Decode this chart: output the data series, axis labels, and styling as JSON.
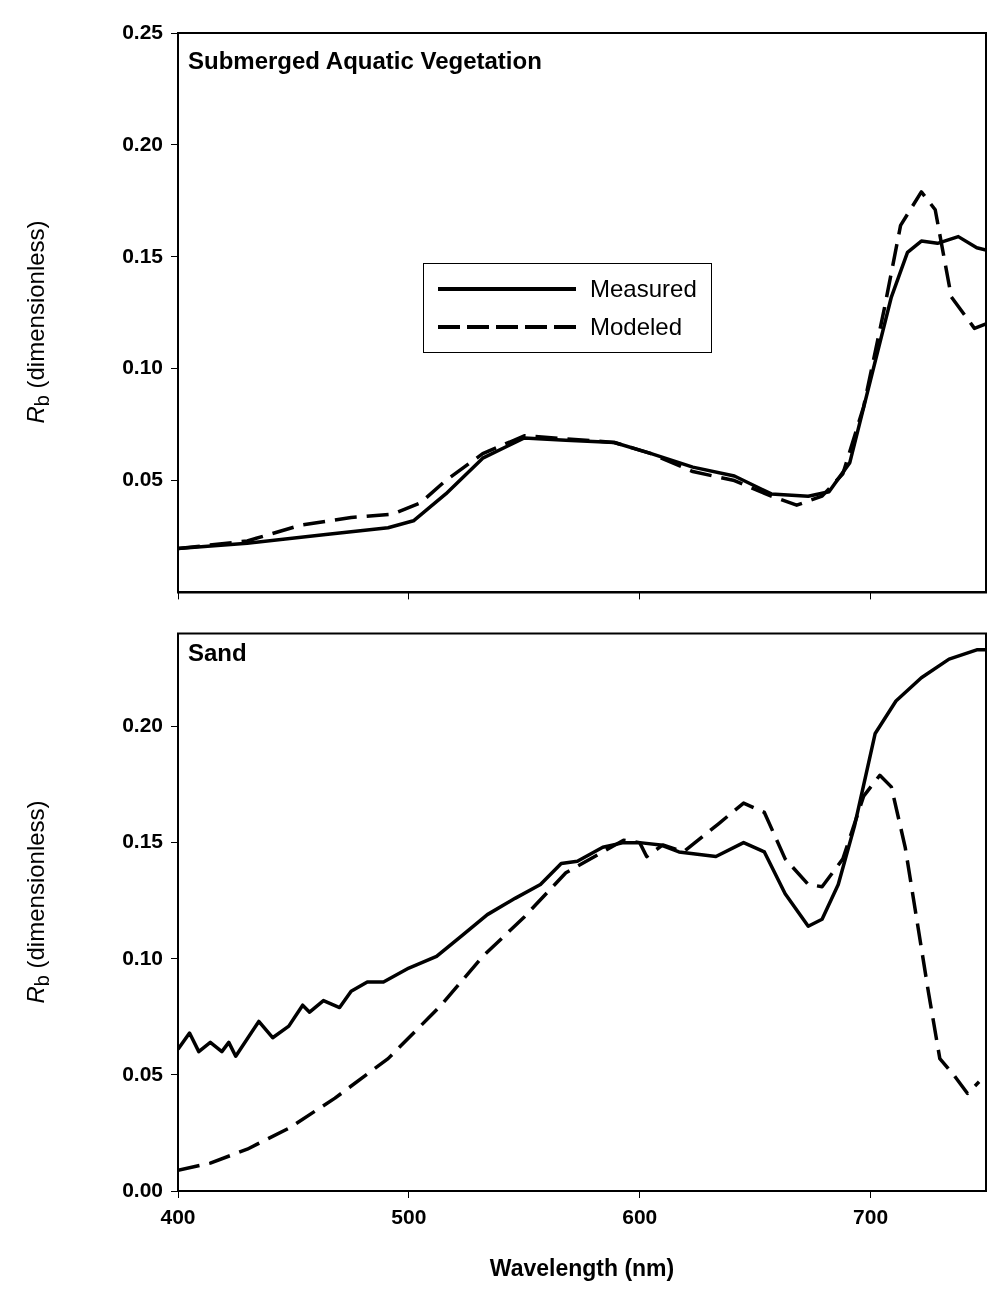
{
  "chart_data": [
    {
      "type": "line",
      "annotations": [
        "Submerged Aquatic Vegetation"
      ],
      "ylabel": "R$_{b}$ (dimensionless)",
      "xlim": [
        400,
        750
      ],
      "xticks": [
        400,
        500,
        600,
        700
      ],
      "ylim": [
        0,
        0.25
      ],
      "yticks": [
        {
          "value": 0.05,
          "label": "0.05"
        },
        {
          "value": 0.1,
          "label": "0.10"
        },
        {
          "value": 0.15,
          "label": "0.15"
        },
        {
          "value": 0.2,
          "label": "0.20"
        },
        {
          "value": 0.25,
          "label": "0.25"
        }
      ],
      "tick_labels": "y",
      "grid": false,
      "legend": "center",
      "marker": "none",
      "series": [
        {
          "name": "Measured",
          "color": "#000000",
          "line_style": "solid",
          "x": [
            400,
            430,
            464,
            491,
            502,
            516,
            532,
            550,
            568,
            589,
            605,
            623,
            641,
            657,
            673,
            682,
            691,
            700,
            709,
            716,
            722,
            729,
            738,
            746,
            750
          ],
          "values": [
            0.0196,
            0.022,
            0.0259,
            0.0289,
            0.032,
            0.044,
            0.06,
            0.069,
            0.068,
            0.067,
            0.062,
            0.056,
            0.052,
            0.044,
            0.043,
            0.045,
            0.058,
            0.095,
            0.132,
            0.152,
            0.157,
            0.156,
            0.159,
            0.154,
            0.153
          ]
        },
        {
          "name": "Modeled",
          "color": "#000000",
          "line_style": "dashed",
          "x": [
            400,
            430,
            453,
            475,
            493,
            505,
            516,
            532,
            550,
            589,
            605,
            623,
            641,
            657,
            668,
            679,
            688,
            697,
            706,
            713,
            722,
            728,
            735,
            745,
            750
          ],
          "values": [
            0.0196,
            0.023,
            0.03,
            0.0335,
            0.035,
            0.04,
            0.05,
            0.062,
            0.07,
            0.067,
            0.062,
            0.054,
            0.05,
            0.043,
            0.039,
            0.043,
            0.053,
            0.083,
            0.127,
            0.164,
            0.179,
            0.171,
            0.132,
            0.118,
            0.12
          ]
        }
      ]
    },
    {
      "type": "line",
      "annotations": [
        "Sand"
      ],
      "xlabel": "Wavelength (nm)",
      "ylabel": "R$_{b}$ (dimensionless)",
      "xlim": [
        400,
        750
      ],
      "xticks": [
        400,
        500,
        600,
        700
      ],
      "ylim": [
        0,
        0.24
      ],
      "yticks": [
        {
          "value": 0,
          "label": "0.00"
        },
        {
          "value": 0.05,
          "label": "0.05"
        },
        {
          "value": 0.1,
          "label": "0.10"
        },
        {
          "value": 0.15,
          "label": "0.15"
        },
        {
          "value": 0.2,
          "label": "0.20"
        }
      ],
      "grid": false,
      "marker": "none",
      "series": [
        {
          "color": "#000000",
          "line_style": "solid",
          "x": [
            400,
            405,
            409,
            414,
            419,
            422,
            425,
            435,
            441,
            448,
            454,
            457,
            463,
            470,
            475,
            482,
            489,
            500,
            512,
            523,
            534,
            546,
            557,
            566,
            573,
            584,
            593,
            600,
            609,
            617,
            633,
            645,
            654,
            663,
            673,
            679,
            686,
            693,
            702,
            711,
            722,
            734,
            746,
            750
          ],
          "values": [
            0.061,
            0.068,
            0.06,
            0.064,
            0.06,
            0.064,
            0.058,
            0.073,
            0.066,
            0.071,
            0.08,
            0.077,
            0.082,
            0.079,
            0.086,
            0.09,
            0.09,
            0.096,
            0.101,
            0.11,
            0.119,
            0.126,
            0.132,
            0.141,
            0.142,
            0.148,
            0.15,
            0.15,
            0.149,
            0.146,
            0.144,
            0.15,
            0.146,
            0.128,
            0.114,
            0.117,
            0.132,
            0.157,
            0.197,
            0.211,
            0.221,
            0.229,
            0.233,
            0.233
          ]
        },
        {
          "color": "#000000",
          "line_style": "dashed",
          "x": [
            400,
            414,
            430,
            448,
            468,
            491,
            514,
            532,
            550,
            568,
            584,
            593,
            600,
            603,
            610,
            619,
            634,
            645,
            654,
            663,
            673,
            679,
            688,
            697,
            704,
            709,
            715,
            720,
            725,
            730,
            736,
            742,
            747
          ],
          "values": [
            0.0089,
            0.012,
            0.018,
            0.027,
            0.04,
            0.057,
            0.08,
            0.101,
            0.118,
            0.137,
            0.146,
            0.151,
            0.15,
            0.144,
            0.149,
            0.146,
            0.158,
            0.167,
            0.163,
            0.143,
            0.132,
            0.131,
            0.143,
            0.17,
            0.179,
            0.174,
            0.148,
            0.117,
            0.086,
            0.057,
            0.05,
            0.042,
            0.047
          ]
        }
      ]
    }
  ]
}
